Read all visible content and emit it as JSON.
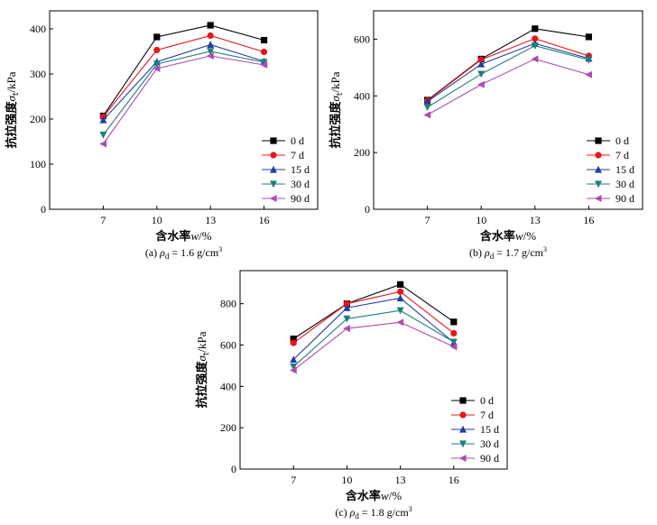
{
  "chart_data": [
    {
      "type": "line",
      "panel": "a",
      "caption": {
        "prefix": "(a) ",
        "rho": "ρ",
        "rho_sub": "d",
        "value": " = 1.6 g/cm",
        "sup": "3"
      },
      "xlabel": {
        "main": "含水率",
        "var": "w",
        "unit": "/%"
      },
      "ylabel": {
        "main": "抗拉强度",
        "var": "σ",
        "sub": "t",
        "unit": "/kPa"
      },
      "categories": [
        7,
        10,
        13,
        16
      ],
      "ylim": [
        0,
        440
      ],
      "yticks": [
        0,
        100,
        200,
        300,
        400
      ],
      "legend_position": "lower-right",
      "series": [
        {
          "name": "0 d",
          "values": [
            207,
            382,
            408,
            375
          ]
        },
        {
          "name": "7 d",
          "values": [
            205,
            353,
            385,
            349
          ]
        },
        {
          "name": "15 d",
          "values": [
            198,
            327,
            365,
            328
          ]
        },
        {
          "name": "30 d",
          "values": [
            165,
            322,
            350,
            326
          ]
        },
        {
          "name": "90 d",
          "values": [
            145,
            312,
            340,
            320
          ]
        }
      ]
    },
    {
      "type": "line",
      "panel": "b",
      "caption": {
        "prefix": "(b) ",
        "rho": "ρ",
        "rho_sub": "d",
        "value": " = 1.7 g/cm",
        "sup": "3"
      },
      "xlabel": {
        "main": "含水率",
        "var": "w",
        "unit": "/%"
      },
      "ylabel": {
        "main": "抗拉强度",
        "var": "σ",
        "sub": "t",
        "unit": "/kPa"
      },
      "categories": [
        7,
        10,
        13,
        16
      ],
      "ylim": [
        0,
        700
      ],
      "yticks": [
        0,
        200,
        400,
        600
      ],
      "legend_position": "lower-right",
      "series": [
        {
          "name": "0 d",
          "values": [
            385,
            530,
            637,
            608
          ]
        },
        {
          "name": "7 d",
          "values": [
            383,
            528,
            602,
            541
          ]
        },
        {
          "name": "15 d",
          "values": [
            380,
            512,
            585,
            532
          ]
        },
        {
          "name": "30 d",
          "values": [
            360,
            477,
            577,
            527
          ]
        },
        {
          "name": "90 d",
          "values": [
            333,
            440,
            530,
            475
          ]
        }
      ]
    },
    {
      "type": "line",
      "panel": "c",
      "caption": {
        "prefix": "(c) ",
        "rho": "ρ",
        "rho_sub": "d",
        "value": " = 1.8 g/cm",
        "sup": "3"
      },
      "xlabel": {
        "main": "含水率",
        "var": "w",
        "unit": "/%"
      },
      "ylabel": {
        "main": "抗拉强度",
        "var": "σ",
        "sub": "t",
        "unit": "/kPa"
      },
      "categories": [
        7,
        10,
        13,
        16
      ],
      "ylim": [
        0,
        960
      ],
      "yticks": [
        0,
        200,
        400,
        600,
        800
      ],
      "legend_position": "lower-right",
      "series": [
        {
          "name": "0 d",
          "values": [
            630,
            800,
            893,
            712
          ]
        },
        {
          "name": "7 d",
          "values": [
            610,
            800,
            858,
            657
          ]
        },
        {
          "name": "15 d",
          "values": [
            530,
            780,
            827,
            612
          ]
        },
        {
          "name": "30 d",
          "values": [
            495,
            727,
            767,
            615
          ]
        },
        {
          "name": "90 d",
          "values": [
            478,
            680,
            710,
            592
          ]
        }
      ]
    }
  ],
  "style": {
    "series_colors": [
      "#000000",
      "#e8151b",
      "#1f3f9e",
      "#1e7f7d",
      "#b04bb2"
    ],
    "series_markers": [
      "square",
      "circle",
      "triangle-up",
      "triangle-down",
      "triangle-left"
    ]
  }
}
